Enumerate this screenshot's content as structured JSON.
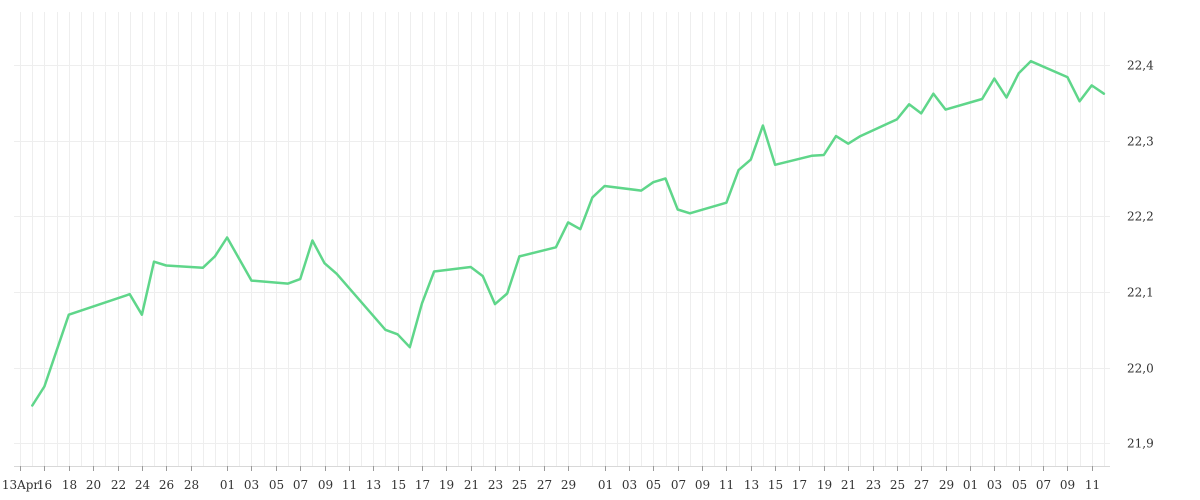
{
  "chart_data": {
    "type": "line",
    "title": "",
    "xlabel": "",
    "ylabel": "",
    "grid": true,
    "legend": "none",
    "colors": {
      "series": "#5fd68a",
      "grid": "#eeeeee",
      "text": "#333333"
    },
    "y_axis": {
      "position": "right",
      "ylim": [
        21.87,
        22.47
      ],
      "ticks": [
        21.9,
        22.0,
        22.1,
        22.2,
        22.3,
        22.4
      ],
      "tick_labels": [
        "21,9",
        "22,0",
        "22,1",
        "22,2",
        "22,3",
        "22,4"
      ]
    },
    "x_axis": {
      "tick_labels": [
        {
          "i": 0,
          "label": "13Apr"
        },
        {
          "i": 2,
          "label": "16"
        },
        {
          "i": 4,
          "label": "18"
        },
        {
          "i": 6,
          "label": "20"
        },
        {
          "i": 8,
          "label": "22"
        },
        {
          "i": 10,
          "label": "24"
        },
        {
          "i": 12,
          "label": "26"
        },
        {
          "i": 14,
          "label": "28"
        },
        {
          "i": 17,
          "label": "01"
        },
        {
          "i": 19,
          "label": "03"
        },
        {
          "i": 21,
          "label": "05"
        },
        {
          "i": 23,
          "label": "07"
        },
        {
          "i": 25,
          "label": "09"
        },
        {
          "i": 27,
          "label": "11"
        },
        {
          "i": 29,
          "label": "13"
        },
        {
          "i": 31,
          "label": "15"
        },
        {
          "i": 33,
          "label": "17"
        },
        {
          "i": 35,
          "label": "19"
        },
        {
          "i": 37,
          "label": "21"
        },
        {
          "i": 39,
          "label": "23"
        },
        {
          "i": 41,
          "label": "25"
        },
        {
          "i": 43,
          "label": "27"
        },
        {
          "i": 45,
          "label": "29"
        },
        {
          "i": 48,
          "label": "01"
        },
        {
          "i": 50,
          "label": "03"
        },
        {
          "i": 52,
          "label": "05"
        },
        {
          "i": 54,
          "label": "07"
        },
        {
          "i": 56,
          "label": "09"
        },
        {
          "i": 58,
          "label": "11"
        },
        {
          "i": 60,
          "label": "13"
        },
        {
          "i": 62,
          "label": "15"
        },
        {
          "i": 64,
          "label": "17"
        },
        {
          "i": 66,
          "label": "19"
        },
        {
          "i": 68,
          "label": "21"
        },
        {
          "i": 70,
          "label": "23"
        },
        {
          "i": 72,
          "label": "25"
        },
        {
          "i": 74,
          "label": "27"
        },
        {
          "i": 76,
          "label": "29"
        },
        {
          "i": 78,
          "label": "01"
        },
        {
          "i": 80,
          "label": "03"
        },
        {
          "i": 82,
          "label": "05"
        },
        {
          "i": 84,
          "label": "07"
        },
        {
          "i": 86,
          "label": "09"
        },
        {
          "i": 88,
          "label": "11"
        }
      ],
      "slots": 90
    },
    "series": [
      {
        "values": [
          [
            1,
            21.95
          ],
          [
            2,
            21.975
          ],
          [
            4,
            22.07
          ],
          [
            9,
            22.097
          ],
          [
            10,
            22.07
          ],
          [
            11,
            22.14
          ],
          [
            12,
            22.135
          ],
          [
            15,
            22.132
          ],
          [
            16,
            22.147
          ],
          [
            17,
            22.172
          ],
          [
            19,
            22.115
          ],
          [
            22,
            22.111
          ],
          [
            23,
            22.117
          ],
          [
            24,
            22.168
          ],
          [
            25,
            22.138
          ],
          [
            26,
            22.124
          ],
          [
            30,
            22.05
          ],
          [
            31,
            22.044
          ],
          [
            32,
            22.027
          ],
          [
            33,
            22.085
          ],
          [
            34,
            22.127
          ],
          [
            37,
            22.133
          ],
          [
            38,
            22.121
          ],
          [
            39,
            22.084
          ],
          [
            40,
            22.098
          ],
          [
            41,
            22.147
          ],
          [
            44,
            22.159
          ],
          [
            45,
            22.192
          ],
          [
            46,
            22.183
          ],
          [
            47,
            22.225
          ],
          [
            48,
            22.24
          ],
          [
            51,
            22.234
          ],
          [
            52,
            22.245
          ],
          [
            53,
            22.25
          ],
          [
            54,
            22.209
          ],
          [
            55,
            22.204
          ],
          [
            58,
            22.218
          ],
          [
            59,
            22.261
          ],
          [
            60,
            22.275
          ],
          [
            61,
            22.32
          ],
          [
            62,
            22.268
          ],
          [
            65,
            22.28
          ],
          [
            66,
            22.281
          ],
          [
            67,
            22.306
          ],
          [
            68,
            22.296
          ],
          [
            69,
            22.306
          ],
          [
            72,
            22.328
          ],
          [
            73,
            22.348
          ],
          [
            74,
            22.336
          ],
          [
            75,
            22.362
          ],
          [
            76,
            22.341
          ],
          [
            79,
            22.355
          ],
          [
            80,
            22.382
          ],
          [
            81,
            22.357
          ],
          [
            82,
            22.389
          ],
          [
            83,
            22.405
          ],
          [
            86,
            22.384
          ],
          [
            87,
            22.352
          ],
          [
            88,
            22.373
          ],
          [
            89,
            22.362
          ]
        ]
      }
    ]
  }
}
